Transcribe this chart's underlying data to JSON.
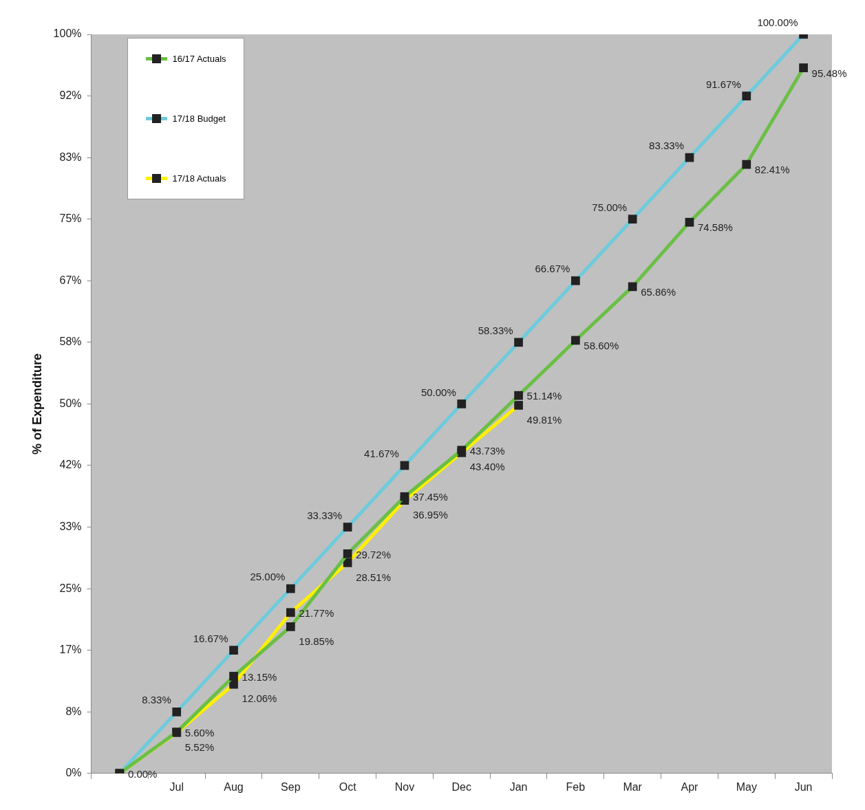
{
  "chart_data": {
    "type": "line",
    "ylabel": "% of Expenditure",
    "categories": [
      null,
      "Jul",
      "Aug",
      "Sep",
      "Oct",
      "Nov",
      "Dec",
      "Jan",
      "Feb",
      "Mar",
      "Apr",
      "May",
      "Jun"
    ],
    "series": [
      {
        "name": "16/17 Actuals",
        "color": "#6abf45",
        "values": [
          0,
          5.6,
          13.15,
          19.85,
          29.72,
          37.45,
          43.73,
          51.14,
          58.6,
          65.86,
          74.58,
          82.41,
          95.48
        ],
        "value_labels": [
          null,
          "5.60%",
          "13.15%",
          "19.85%",
          "29.72%",
          "37.45%",
          "43.73%",
          "51.14%",
          "58.60%",
          "65.86%",
          "74.58%",
          "82.41%",
          "95.48%"
        ]
      },
      {
        "name": "17/18 Budget",
        "color": "#6dcbdc",
        "values": [
          0,
          8.33,
          16.67,
          25.0,
          33.33,
          41.67,
          50.0,
          58.33,
          66.67,
          75.0,
          83.33,
          91.67,
          100.0
        ],
        "value_labels": [
          "0.00%",
          "8.33%",
          "16.67%",
          "25.00%",
          "33.33%",
          "41.67%",
          "50.00%",
          "58.33%",
          "66.67%",
          "75.00%",
          "83.33%",
          "91.67%",
          "100.00%"
        ]
      },
      {
        "name": "17/18 Actuals",
        "color": "#ffef00",
        "values": [
          0,
          5.52,
          12.06,
          21.77,
          28.51,
          36.95,
          43.4,
          49.81,
          null,
          null,
          null,
          null,
          null
        ],
        "value_labels": [
          null,
          "5.52%",
          "12.06%",
          "21.77%",
          "28.51%",
          "36.95%",
          "43.40%",
          "49.81%",
          null,
          null,
          null,
          null,
          null
        ]
      }
    ],
    "ylim": [
      0,
      100
    ],
    "yticks": [
      {
        "value": 0,
        "label": "0%"
      },
      {
        "value": 8.33,
        "label": "8%"
      },
      {
        "value": 16.67,
        "label": "17%"
      },
      {
        "value": 25,
        "label": "25%"
      },
      {
        "value": 33.33,
        "label": "33%"
      },
      {
        "value": 41.67,
        "label": "42%"
      },
      {
        "value": 50,
        "label": "50%"
      },
      {
        "value": 58.33,
        "label": "58%"
      },
      {
        "value": 66.67,
        "label": "67%"
      },
      {
        "value": 75,
        "label": "75%"
      },
      {
        "value": 83.33,
        "label": "83%"
      },
      {
        "value": 91.67,
        "label": "92%"
      },
      {
        "value": 100,
        "label": "100%"
      }
    ],
    "grid": false,
    "legend": "top left",
    "marker": "square",
    "line_style": "solid"
  }
}
